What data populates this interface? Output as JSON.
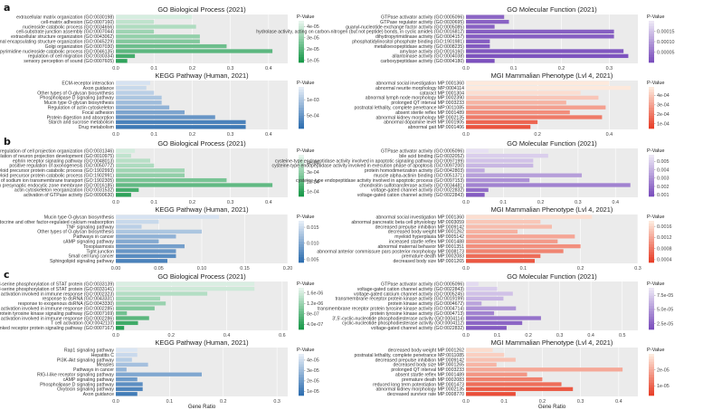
{
  "figure": {
    "panel_labels": [
      "a",
      "b",
      "c"
    ],
    "legend_title": "P-Value",
    "x_axis_label": "Gene Ratio",
    "colors": {
      "green_high": "#1a9a4a",
      "green_low": "#e6f4ec",
      "blue_high": "#2f6fb0",
      "blue_low": "#e4ecf6",
      "purple_high": "#7b4fbd",
      "purple_low": "#ece6f5",
      "red_high": "#e8402a",
      "red_low": "#fde9dc",
      "panel_bg": "#ebebeb"
    }
  },
  "chart_data": [
    {
      "type": "bar",
      "panel": "a",
      "title": "GO Biological Process (2021)",
      "palette": "green",
      "categories": [
        "extracellular matrix organization (GO:0030198)",
        "cell-matrix adhesion (GO:0007160)",
        "nucleoside catabolic process (GO:0034656)",
        "cell-substrate junction assembly (GO:0007044)",
        "extracellular structure organization (GO:0043062)",
        "external encapsulating structure organization (GO:0045229)",
        "Golgi organization (GO:0007030)",
        "pyrimidine nucleoside catabolic process (GO:0046135)",
        "regulation of cell migration (GO:0030334)",
        "sensory perception of sound (GO:0007605)"
      ],
      "values": [
        0.2,
        0.1,
        0.21,
        0.1,
        0.22,
        0.22,
        0.29,
        0.41,
        0.05,
        0.03
      ],
      "pvalues": [
        4.2e-05,
        3.8e-05,
        3.5e-05,
        3.2e-05,
        3e-05,
        2.7e-05,
        2.3e-05,
        2e-05,
        1.6e-05,
        1.2e-05
      ],
      "xlim": [
        0,
        0.45
      ],
      "xticks": [
        "0.0",
        "0.1",
        "0.2",
        "0.3",
        "0.4"
      ],
      "xtick_values": [
        0,
        0.1,
        0.2,
        0.3,
        0.4
      ],
      "legend_ticks": [
        "4e-05",
        "3e-05",
        "2e-05",
        "1e-05"
      ],
      "legend_values": [
        4e-05,
        3e-05,
        2e-05,
        1e-05
      ],
      "prange": [
        8e-06,
        4.5e-05
      ]
    },
    {
      "type": "bar",
      "panel": "a",
      "title": "GO Molecular Function (2021)",
      "palette": "purple",
      "categories": [
        "GTPase activator activity (GO:0005096)",
        "GTPase regulator activity (GO:0030695)",
        "guanyl-nucleotide exchange factor activity (GO:0005085)",
        "hydrolase activity, acting on carbon-nitrogen (but not peptide) bonds, in cyclic amides (GO:0016812)",
        "dihydropyrimidinase activity (GO:0004157)",
        "phosphatidylinositol phosphate binding (GO:1901981)",
        "metalloexopeptidase activity (GO:0008235)",
        "amylase activity (GO:0016160)",
        "allantoinase activity (GO:0004038)",
        "carboxypeptidase activity (GO:0004180)"
      ],
      "values": [
        0.08,
        0.09,
        0.06,
        0.31,
        0.31,
        0.05,
        0.05,
        0.33,
        0.34,
        0.06
      ],
      "pvalues": [
        2.8e-05,
        2.6e-05,
        2.4e-05,
        2.2e-05,
        2e-05,
        1.8e-05,
        1.4e-05,
        1e-05,
        6e-06,
        3e-06
      ],
      "xlim": [
        0,
        0.36
      ],
      "xticks": [
        "0.0",
        "0.1",
        "0.2",
        "0.3"
      ],
      "xtick_values": [
        0,
        0.1,
        0.2,
        0.3
      ],
      "legend_ticks": [
        "0.00015",
        "0.00010",
        "0.00005"
      ],
      "legend_values": [
        0.00015,
        0.0001,
        5e-05
      ],
      "prange": [
        0,
        0.0002
      ]
    },
    {
      "type": "bar",
      "panel": "a",
      "title": "KEGG Pathway (Human, 2021)",
      "palette": "blue",
      "categories": [
        "ECM-receptor interaction",
        "Axon guidance",
        "Other types of O-glycan biosynthesis",
        "Phospholipase D signaling pathway",
        "Mucin type O-glycan biosynthesis",
        "Regulation of actin cytoskeleton",
        "Focal adhesion",
        "Protein digestion and absorption",
        "Starch and sucrose metabolism",
        "Drug metabolism"
      ],
      "values": [
        0.09,
        0.08,
        0.1,
        0.12,
        0.12,
        0.14,
        0.18,
        0.26,
        0.34,
        0.34
      ],
      "pvalues": [
        0.0013,
        0.0012,
        0.0011,
        0.001,
        0.0009,
        0.0008,
        0.00065,
        0.0005,
        0.0003,
        0.0002
      ],
      "xlim": [
        0,
        0.45
      ],
      "xticks": [
        "0.0",
        "0.1",
        "0.2",
        "0.3",
        "0.4"
      ],
      "xtick_values": [
        0,
        0.1,
        0.2,
        0.3,
        0.4
      ],
      "legend_ticks": [
        "1e-03",
        "5e-04"
      ],
      "legend_values": [
        0.001,
        0.0005
      ],
      "prange": [
        0.0001,
        0.0014
      ]
    },
    {
      "type": "bar",
      "panel": "a",
      "title": "MGI Mammalian Phenotype (Lvl 4, 2021)",
      "palette": "red",
      "categories": [
        "abnormal social investigation MP:0001360",
        "abnormal neurite morphology MP:0004114",
        "cataract MP:0001304",
        "abnormal lymph node morphology MP:0002390",
        "prolonged QT interval MP:0003233",
        "postnatal lethality, complete penetrance MP:0011085",
        "absent sterile reflex MP:0001489",
        "abnormal kidney morphology MP:0002135",
        "abnormal dopamine level MP:0001905",
        "abnormal gait MP:0001406"
      ],
      "values": [
        0.4,
        0.46,
        0.32,
        0.37,
        0.28,
        0.39,
        0.29,
        0.38,
        0.2,
        0.18
      ],
      "pvalues": [
        0.00055,
        0.0005,
        0.00046,
        0.0004,
        0.00035,
        0.0003,
        0.00025,
        0.0002,
        0.00015,
        0.0001
      ],
      "xlim": [
        0,
        0.48
      ],
      "xticks": [
        "0.0",
        "0.2",
        "0.4"
      ],
      "xtick_values": [
        0,
        0.2,
        0.4
      ],
      "legend_ticks": [
        "4e-04",
        "3e-04",
        "2e-04",
        "1e-04"
      ],
      "legend_values": [
        0.0004,
        0.0003,
        0.0002,
        0.0001
      ],
      "prange": [
        5e-05,
        0.00049
      ]
    },
    {
      "type": "bar",
      "panel": "b",
      "title": "GO Biological Process (2021)",
      "palette": "green",
      "categories": [
        "positive regulation of cell projection organization (GO:0031346)",
        "regulation of neuron projection development (GO:0010975)",
        "ephrin receptor signaling pathway (GO:0048013)",
        "positive regulation of axonogenesis (GO:0050772)",
        "positive regulation of amyloid precursor protein catabolic process (GO:1902993)",
        "regulation of amyloid precursor protein catabolic process (GO:1902991)",
        "regulation of sodium ion transmembrane transport (GO:1902305)",
        "synaptic vesicle budding from presynaptic endocytic zone membrane (GO:0016185)",
        "actin cytoskeleton reorganization (GO:0031532)",
        "activation of GTPase activity (GO:0090630)"
      ],
      "values": [
        0.05,
        0.04,
        0.09,
        0.1,
        0.18,
        0.18,
        0.29,
        0.41,
        0.06,
        0.04
      ],
      "pvalues": [
        0.00044,
        0.0004,
        0.00038,
        0.00036,
        0.00033,
        0.0003,
        0.00025,
        0.0002,
        0.00014,
        9e-05
      ],
      "xlim": [
        0,
        0.45
      ],
      "xticks": [
        "0.0",
        "0.1",
        "0.2",
        "0.3",
        "0.4"
      ],
      "xtick_values": [
        0,
        0.1,
        0.2,
        0.3,
        0.4
      ],
      "legend_ticks": [
        "4e-04",
        "3e-04",
        "2e-04",
        "1e-04"
      ],
      "legend_values": [
        0.0004,
        0.0003,
        0.0002,
        0.0001
      ],
      "prange": [
        5e-05,
        0.00048
      ]
    },
    {
      "type": "bar",
      "panel": "b",
      "title": "GO Molecular Function (2021)",
      "palette": "purple",
      "categories": [
        "GTPase activator activity (GO:0005096)",
        "bile acid binding (GO:0032052)",
        "cysteine-type endopeptidase activity involved in apoptotic signaling pathway (GO:0097199)",
        "cysteine-type endopeptidase activity involved in execution phase of apoptosis (GO:0097200)",
        "protein homodimerization activity (GO:0042803)",
        "muscle alpha-actinin binding (GO:0051371)",
        "cysteine-type endopeptidase activity involved in apoptotic process (GO:0097153)",
        "chondroitin sulfotransferase activity (GO:0034481)",
        "voltage-gated channel activity (GO:0022832)",
        "voltage-gated cation channel activity (GO:0022843)"
      ],
      "values": [
        0.06,
        0.22,
        0.18,
        0.18,
        0.05,
        0.31,
        0.17,
        0.44,
        0.06,
        0.05
      ],
      "pvalues": [
        0.0056,
        0.005,
        0.0046,
        0.0042,
        0.0038,
        0.0034,
        0.003,
        0.0025,
        0.0018,
        0.0012
      ],
      "xlim": [
        0,
        0.46
      ],
      "xticks": [
        "0.0",
        "0.1",
        "0.2",
        "0.3",
        "0.4"
      ],
      "xtick_values": [
        0,
        0.1,
        0.2,
        0.3,
        0.4
      ],
      "legend_ticks": [
        "0.005",
        "0.004",
        "0.003",
        "0.002",
        "0.001"
      ],
      "legend_values": [
        0.005,
        0.004,
        0.003,
        0.002,
        0.001
      ],
      "prange": [
        0.0008,
        0.0058
      ]
    },
    {
      "type": "bar",
      "panel": "b",
      "title": "KEGG Pathway (Human, 2021)",
      "palette": "blue",
      "categories": [
        "Mucin type O-glycan biosynthesis",
        "Endocrine and other factor-regulated calcium reabsorption",
        "TNF signaling pathway",
        "Other types of O-glycan biosynthesis",
        "Pathways in cancer",
        "cAMP signaling pathway",
        "Toxoplasmosis",
        "Tight junction",
        "Small cell lung cancer",
        "Sphingolipid signaling pathway"
      ],
      "values": [
        0.12,
        0.05,
        0.03,
        0.1,
        0.07,
        0.05,
        0.08,
        0.07,
        0.07,
        0.06
      ],
      "pvalues": [
        0.016,
        0.015,
        0.014,
        0.013,
        0.011,
        0.01,
        0.009,
        0.008,
        0.007,
        0.006
      ],
      "xlim": [
        0,
        0.2
      ],
      "xticks": [
        "0.00",
        "0.05",
        "0.10",
        "0.15",
        "0.20"
      ],
      "xtick_values": [
        0,
        0.05,
        0.1,
        0.15,
        0.2
      ],
      "legend_ticks": [
        "0.015",
        "0.010",
        "0.005"
      ],
      "legend_values": [
        0.015,
        0.01,
        0.005
      ],
      "prange": [
        0.004,
        0.017
      ]
    },
    {
      "type": "bar",
      "panel": "b",
      "title": "MGI Mammalian Phenotype (Lvl 4, 2021)",
      "palette": "red",
      "categories": [
        "abnormal social investigation MP:0001360",
        "abnormal pancreatic beta cell physiology MP:0003059",
        "decreased prepulse inhibition MP:0009142",
        "decreased body weight MP:0001262",
        "myeloid hyperplasia MP:0005142",
        "increased startle reflex MP:0001488",
        "abnormal maternal behavior MP:0001351",
        "abnormal anterior commissure pars posterior morphology MP:0008173",
        "premature death MP:0002083",
        "decreased body size MP:0001265"
      ],
      "values": [
        0.22,
        0.13,
        0.15,
        0.09,
        0.19,
        0.16,
        0.2,
        0.17,
        0.13,
        0.12
      ],
      "pvalues": [
        0.0017,
        0.0015,
        0.0014,
        0.0013,
        0.0012,
        0.0011,
        0.001,
        0.0009,
        0.0007,
        0.0005
      ],
      "xlim": [
        0,
        0.3
      ],
      "xticks": [
        "0.0",
        "0.1",
        "0.2",
        "0.3"
      ],
      "xtick_values": [
        0,
        0.1,
        0.2,
        0.3
      ],
      "legend_ticks": [
        "0.0016",
        "0.0012",
        "0.0008",
        "0.0004"
      ],
      "legend_values": [
        0.0016,
        0.0012,
        0.0008,
        0.0004
      ],
      "prange": [
        0.0003,
        0.0018
      ]
    },
    {
      "type": "bar",
      "panel": "c",
      "title": "GO Biological Process (2021)",
      "palette": "green",
      "categories": [
        "regulation of peptidyl-serine phosphorylation of STAT protein (GO:0033139)",
        "positive regulation of peptidyl-serine phosphorylation of STAT protein (GO:0033141)",
        "natural killer cell activation involved in immune response (GO:0002323)",
        "response to dsRNA (GO:0043331)",
        "response to exogenous dsRNA (GO:0043330)",
        "lymphocyte activation involved in immune response (GO:0002285)",
        "transmembrane receptor protein tyrosine kinase signaling pathway (GO:0007169)",
        "T cell activation involved in immune response (GO:0002286)",
        "T cell activation (GO:0042110)",
        "enzyme linked receptor protein signaling pathway (GO:0007167)"
      ],
      "values": [
        0.5,
        0.5,
        0.33,
        0.16,
        0.18,
        0.14,
        0.04,
        0.12,
        0.08,
        0.03
      ],
      "pvalues": [
        1.7e-06,
        1.6e-06,
        1.4e-06,
        1.3e-06,
        1.2e-06,
        1e-06,
        9e-07,
        7e-07,
        5e-07,
        3e-07
      ],
      "xlim": [
        0,
        0.62
      ],
      "xticks": [
        "0.0",
        "0.2",
        "0.4",
        "0.6"
      ],
      "xtick_values": [
        0,
        0.2,
        0.4,
        0.6
      ],
      "legend_ticks": [
        "1.6e-06",
        "1.2e-06",
        "8e-07",
        "4.0e-07"
      ],
      "legend_values": [
        1.6e-06,
        1.2e-06,
        8e-07,
        4e-07
      ],
      "prange": [
        2e-07,
        1.8e-06
      ]
    },
    {
      "type": "bar",
      "panel": "c",
      "title": "GO Molecular Function (2021)",
      "palette": "purple",
      "categories": [
        "GTPase activator activity (GO:0005096)",
        "voltage-gated cation channel activity (GO:0022843)",
        "voltage-gated calcium channel activity (GO:0005245)",
        "transmembrane receptor protein kinase activity (GO:0019199)",
        "protein kinase activity (GO:0004672)",
        "transmembrane receptor protein tyrosine kinase activity (GO:0004714)",
        "protein tyrosine kinase activity (GO:0004713)",
        "3',5'-cyclic-nucleotide phosphodiesterase activity (GO:0004114)",
        "cyclic-nucleotide phosphodiesterase activity (GO:0004112)",
        "voltage-gated channel activity (GO:0022832)"
      ],
      "values": [
        0.04,
        0.1,
        0.15,
        0.12,
        0.05,
        0.16,
        0.09,
        0.24,
        0.18,
        0.13
      ],
      "pvalues": [
        8.2e-05,
        7.6e-05,
        7e-05,
        6.4e-05,
        5.6e-05,
        4.8e-05,
        4e-05,
        3.2e-05,
        2.6e-05,
        2e-05
      ],
      "xlim": [
        0,
        0.55
      ],
      "xticks": [
        "0.0",
        "0.1",
        "0.2",
        "0.3",
        "0.4",
        "0.5"
      ],
      "xtick_values": [
        0,
        0.1,
        0.2,
        0.3,
        0.4,
        0.5
      ],
      "legend_ticks": [
        "7.5e-05",
        "5.0e-05",
        "2.5e-05"
      ],
      "legend_values": [
        7.5e-05,
        5e-05,
        2.5e-05
      ],
      "prange": [
        1.5e-05,
        8.8e-05
      ]
    },
    {
      "type": "bar",
      "panel": "c",
      "title": "KEGG Pathway (Human, 2021)",
      "palette": "blue",
      "categories": [
        "Rap1 signaling pathway",
        "Hepatitis C",
        "PI3K-Akt signaling pathway",
        "Measles",
        "Pathways in cancer",
        "RIG-I-like receptor signaling pathway",
        "cAMP signaling pathway",
        "Phospholipase D signaling pathway",
        "Oxytocin signaling pathway",
        "Axon guidance"
      ],
      "values": [
        0.04,
        0.04,
        0.03,
        0.06,
        0.02,
        0.16,
        0.04,
        0.05,
        0.05,
        0.04
      ],
      "pvalues": [
        4.4e-05,
        4e-05,
        3.6e-05,
        3.2e-05,
        2.8e-05,
        2.4e-05,
        2e-05,
        1.6e-05,
        1.3e-05,
        1e-05
      ],
      "xlim": [
        0,
        0.32
      ],
      "xticks": [
        "0.0",
        "0.1",
        "0.2",
        "0.3"
      ],
      "xtick_values": [
        0,
        0.1,
        0.2,
        0.3
      ],
      "legend_ticks": [
        "4e-05",
        "3e-05",
        "2e-05",
        "1e-05"
      ],
      "legend_values": [
        4e-05,
        3e-05,
        2e-05,
        1e-05
      ],
      "prange": [
        6e-06,
        4.6e-05
      ]
    },
    {
      "type": "bar",
      "panel": "c",
      "title": "MGI Mammalian Phenotype (Lvl 4, 2021)",
      "palette": "red",
      "categories": [
        "decreased body weight MP:0001262",
        "postnatal lethality, complete penetrance MP:0011085",
        "decreased prepulse inhibition MP:0009142",
        "decreased body size MP:0001265",
        "prolonged QT interval MP:0003233",
        "absent startle reflex MP:0001489",
        "premature death MP:0002083",
        "reduced long term potentiation MP:0001473",
        "abnormal kidney morphology MP:0002135",
        "decreased survivor rate MP:0008770"
      ],
      "values": [
        0.07,
        0.1,
        0.13,
        0.08,
        0.41,
        0.16,
        0.2,
        0.25,
        0.28,
        0.13
      ],
      "pvalues": [
        2.8e-05,
        2.6e-05,
        2.4e-05,
        2.2e-05,
        2e-05,
        1.7e-05,
        1.4e-05,
        1.1e-05,
        8e-06,
        6e-06
      ],
      "xlim": [
        0,
        0.45
      ],
      "xticks": [
        "0.0",
        "0.1",
        "0.2",
        "0.3",
        "0.4"
      ],
      "xtick_values": [
        0,
        0.1,
        0.2,
        0.3,
        0.4
      ],
      "legend_ticks": [
        "2e-05",
        "1e-05"
      ],
      "legend_values": [
        2e-05,
        1e-05
      ],
      "prange": [
        4e-06,
        3e-05
      ]
    }
  ]
}
